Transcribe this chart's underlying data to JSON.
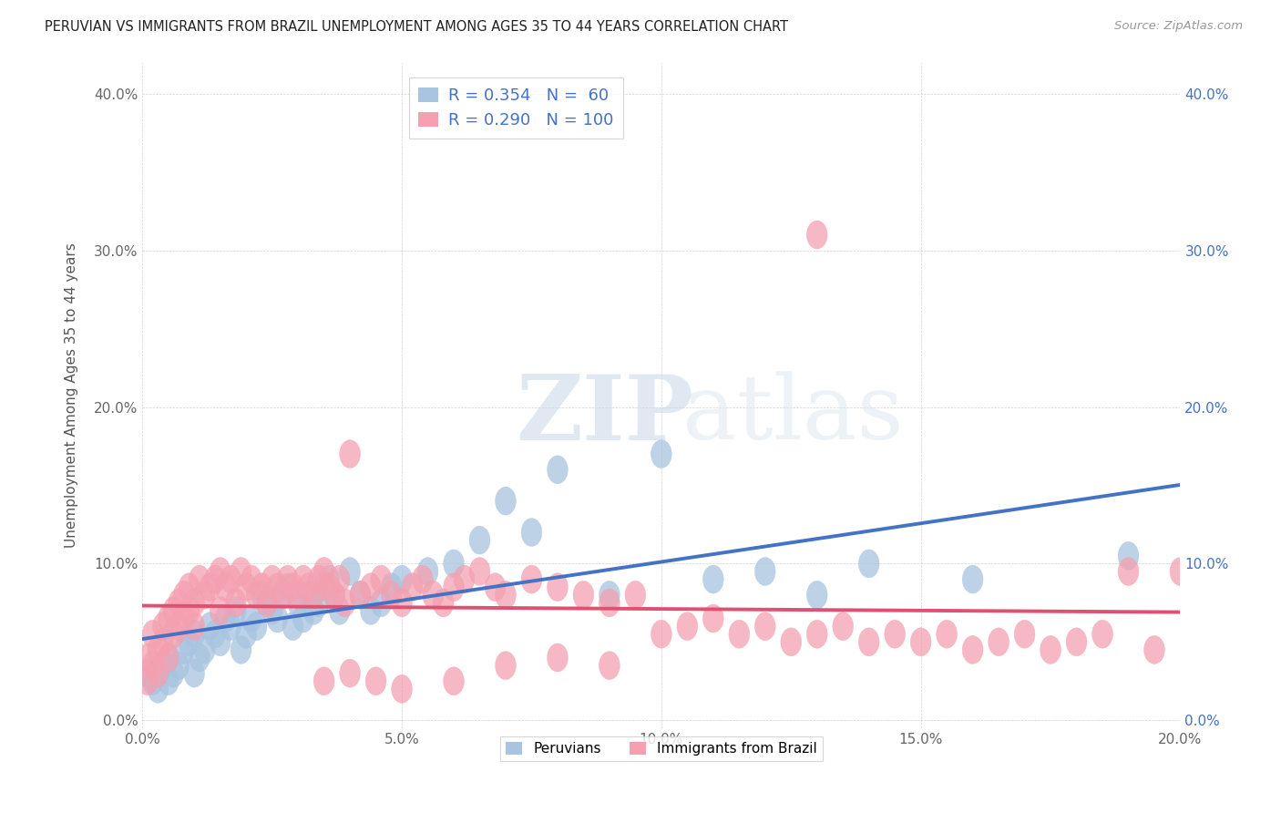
{
  "title": "PERUVIAN VS IMMIGRANTS FROM BRAZIL UNEMPLOYMENT AMONG AGES 35 TO 44 YEARS CORRELATION CHART",
  "source": "Source: ZipAtlas.com",
  "ylabel_label": "Unemployment Among Ages 35 to 44 years",
  "xlim": [
    0.0,
    0.2
  ],
  "ylim": [
    -0.005,
    0.42
  ],
  "x_ticks": [
    0.0,
    0.05,
    0.1,
    0.15,
    0.2
  ],
  "y_ticks": [
    0.0,
    0.1,
    0.2,
    0.3,
    0.4
  ],
  "peruvian_color": "#a8c4e0",
  "brazil_color": "#f4a0b0",
  "trend_peruvian_color": "#4472c4",
  "trend_brazil_color": "#e05070",
  "R_peruvian": 0.354,
  "N_peruvian": 60,
  "R_brazil": 0.29,
  "N_brazil": 100,
  "watermark_zip": "ZIP",
  "watermark_atlas": "atlas",
  "legend_labels": [
    "Peruvians",
    "Immigrants from Brazil"
  ],
  "peruvian_x": [
    0.001,
    0.002,
    0.003,
    0.004,
    0.005,
    0.005,
    0.006,
    0.007,
    0.008,
    0.009,
    0.01,
    0.01,
    0.011,
    0.012,
    0.013,
    0.014,
    0.015,
    0.016,
    0.017,
    0.018,
    0.019,
    0.02,
    0.021,
    0.022,
    0.023,
    0.024,
    0.025,
    0.026,
    0.027,
    0.028,
    0.029,
    0.03,
    0.031,
    0.032,
    0.033,
    0.034,
    0.035,
    0.036,
    0.037,
    0.038,
    0.04,
    0.042,
    0.044,
    0.046,
    0.048,
    0.05,
    0.055,
    0.06,
    0.065,
    0.07,
    0.075,
    0.08,
    0.09,
    0.1,
    0.11,
    0.12,
    0.13,
    0.14,
    0.16,
    0.19
  ],
  "peruvian_y": [
    0.03,
    0.025,
    0.02,
    0.035,
    0.025,
    0.04,
    0.03,
    0.035,
    0.045,
    0.05,
    0.03,
    0.055,
    0.04,
    0.045,
    0.06,
    0.055,
    0.05,
    0.065,
    0.06,
    0.07,
    0.045,
    0.055,
    0.065,
    0.06,
    0.08,
    0.075,
    0.07,
    0.065,
    0.08,
    0.085,
    0.06,
    0.075,
    0.065,
    0.08,
    0.07,
    0.075,
    0.085,
    0.09,
    0.08,
    0.07,
    0.095,
    0.08,
    0.07,
    0.075,
    0.085,
    0.09,
    0.095,
    0.1,
    0.115,
    0.14,
    0.12,
    0.16,
    0.08,
    0.17,
    0.09,
    0.095,
    0.08,
    0.1,
    0.09,
    0.105
  ],
  "brazil_x": [
    0.001,
    0.001,
    0.002,
    0.002,
    0.003,
    0.003,
    0.004,
    0.004,
    0.005,
    0.005,
    0.006,
    0.006,
    0.007,
    0.007,
    0.008,
    0.008,
    0.009,
    0.009,
    0.01,
    0.01,
    0.011,
    0.012,
    0.013,
    0.014,
    0.015,
    0.015,
    0.016,
    0.017,
    0.018,
    0.019,
    0.02,
    0.021,
    0.022,
    0.023,
    0.024,
    0.025,
    0.026,
    0.027,
    0.028,
    0.029,
    0.03,
    0.031,
    0.032,
    0.033,
    0.034,
    0.035,
    0.036,
    0.037,
    0.038,
    0.039,
    0.04,
    0.042,
    0.044,
    0.046,
    0.048,
    0.05,
    0.052,
    0.054,
    0.056,
    0.058,
    0.06,
    0.062,
    0.065,
    0.068,
    0.07,
    0.075,
    0.08,
    0.085,
    0.09,
    0.095,
    0.1,
    0.105,
    0.11,
    0.115,
    0.12,
    0.125,
    0.13,
    0.135,
    0.14,
    0.145,
    0.15,
    0.155,
    0.16,
    0.165,
    0.17,
    0.175,
    0.18,
    0.185,
    0.19,
    0.195,
    0.035,
    0.04,
    0.045,
    0.05,
    0.06,
    0.07,
    0.08,
    0.09,
    0.13,
    0.2
  ],
  "brazil_y": [
    0.025,
    0.04,
    0.035,
    0.055,
    0.03,
    0.045,
    0.05,
    0.06,
    0.04,
    0.065,
    0.055,
    0.07,
    0.06,
    0.075,
    0.065,
    0.08,
    0.07,
    0.085,
    0.06,
    0.075,
    0.09,
    0.08,
    0.085,
    0.09,
    0.095,
    0.07,
    0.085,
    0.09,
    0.075,
    0.095,
    0.085,
    0.09,
    0.08,
    0.085,
    0.075,
    0.09,
    0.085,
    0.08,
    0.09,
    0.085,
    0.08,
    0.09,
    0.085,
    0.08,
    0.09,
    0.095,
    0.085,
    0.08,
    0.09,
    0.075,
    0.17,
    0.08,
    0.085,
    0.09,
    0.08,
    0.075,
    0.085,
    0.09,
    0.08,
    0.075,
    0.085,
    0.09,
    0.095,
    0.085,
    0.08,
    0.09,
    0.085,
    0.08,
    0.075,
    0.08,
    0.055,
    0.06,
    0.065,
    0.055,
    0.06,
    0.05,
    0.055,
    0.06,
    0.05,
    0.055,
    0.05,
    0.055,
    0.045,
    0.05,
    0.055,
    0.045,
    0.05,
    0.055,
    0.095,
    0.045,
    0.025,
    0.03,
    0.025,
    0.02,
    0.025,
    0.035,
    0.04,
    0.035,
    0.31,
    0.095
  ]
}
